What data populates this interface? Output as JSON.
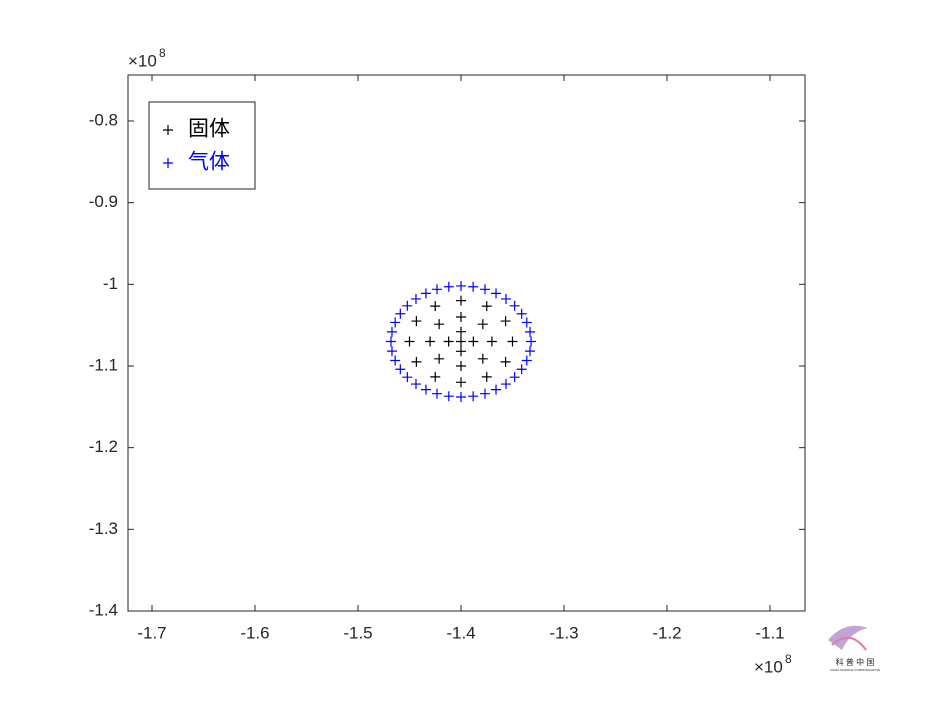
{
  "chart_data": {
    "type": "scatter",
    "x_multiplier": "×10",
    "x_multiplier_exponent": "8",
    "y_multiplier": "×10",
    "y_multiplier_exponent": "8",
    "xlim": [
      -1.7233,
      -1.066
    ],
    "ylim": [
      -1.4,
      -0.7437
    ],
    "xticks": [
      -1.7,
      -1.6,
      -1.5,
      -1.4,
      -1.3,
      -1.2,
      -1.1
    ],
    "yticks": [
      -1.4,
      -1.3,
      -1.2,
      -1.1,
      -1,
      -0.9,
      -0.8
    ],
    "legend": "upper left",
    "series": [
      {
        "name": "固体",
        "color": "#000000",
        "x": [
          -1.35,
          -1.3567,
          -1.375,
          -1.4,
          -1.425,
          -1.4433,
          -1.45,
          -1.4433,
          -1.425,
          -1.4,
          -1.375,
          -1.3567,
          -1.37,
          -1.3788,
          -1.4,
          -1.4212,
          -1.43,
          -1.4212,
          -1.4,
          -1.3788,
          -1.4,
          -1.388,
          -1.4,
          -1.412,
          -1.4
        ],
        "y": [
          -1.07,
          -1.045,
          -1.0267,
          -1.02,
          -1.0267,
          -1.045,
          -1.07,
          -1.095,
          -1.1133,
          -1.12,
          -1.1133,
          -1.095,
          -1.07,
          -1.0488,
          -1.04,
          -1.0488,
          -1.07,
          -1.0912,
          -1.1,
          -1.0912,
          -1.07,
          -1.07,
          -1.058,
          -1.07,
          -1.082
        ]
      },
      {
        "name": "气体",
        "color": "#0000ff",
        "x": [
          -1.332,
          -1.333,
          -1.3361,
          -1.3411,
          -1.3479,
          -1.3563,
          -1.366,
          -1.3767,
          -1.3882,
          -1.4,
          -1.4118,
          -1.4233,
          -1.434,
          -1.4437,
          -1.4521,
          -1.4589,
          -1.4639,
          -1.467,
          -1.468,
          -1.467,
          -1.4639,
          -1.4589,
          -1.4521,
          -1.4437,
          -1.434,
          -1.4233,
          -1.4118,
          -1.4,
          -1.3882,
          -1.3767,
          -1.366,
          -1.3563,
          -1.3479,
          -1.3411,
          -1.3361,
          -1.333
        ],
        "y": [
          -1.07,
          -1.0582,
          -1.0467,
          -1.036,
          -1.0263,
          -1.0179,
          -1.0111,
          -1.0061,
          -1.003,
          -1.002,
          -1.003,
          -1.0061,
          -1.0111,
          -1.0179,
          -1.0263,
          -1.036,
          -1.0467,
          -1.0582,
          -1.07,
          -1.0818,
          -1.0933,
          -1.104,
          -1.1137,
          -1.1221,
          -1.1289,
          -1.1339,
          -1.137,
          -1.138,
          -1.137,
          -1.1339,
          -1.1289,
          -1.1221,
          -1.1137,
          -1.104,
          -1.0933,
          -1.0818
        ]
      }
    ],
    "watermark": "科 普 中 国",
    "watermark_subtitle": "CHINA SCIENCE COMMUNICATION"
  }
}
